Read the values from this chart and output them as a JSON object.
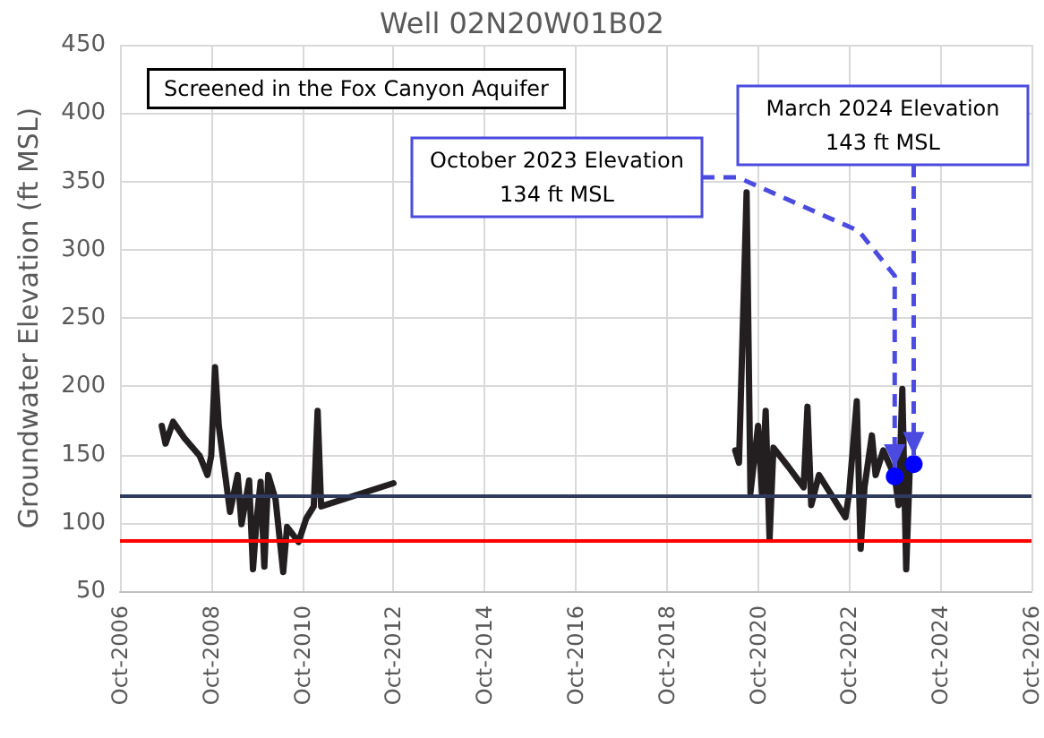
{
  "chart_data": {
    "type": "line",
    "title": "Well 02N20W01B02",
    "ylabel": "Groundwater Elevation (ft MSL)",
    "annotations": [
      "Screened in the Fox Canyon Aquifer",
      {
        "text": "October 2023 Elevation\n134 ft MSL",
        "x": "2023-10",
        "y": 134
      },
      {
        "text": "March 2024 Elevation\n143 ft MSL",
        "x": "2024-03",
        "y": 143
      }
    ],
    "series": [
      {
        "color": "#231f20",
        "x": [
          "2007-09",
          "2007-10",
          "2007-12",
          "2008-03",
          "2008-07",
          "2008-09",
          "2008-10",
          "2008-11",
          "2008-12",
          "2009-01",
          "2009-03",
          "2009-05",
          "2009-06",
          "2009-08",
          "2009-09",
          "2009-10",
          "2009-11",
          "2009-12",
          "2010-01",
          "2010-03",
          "2010-05",
          "2010-06",
          "2010-09",
          "2010-11",
          "2011-01",
          "2011-02",
          "2011-03",
          "2012-10"
        ],
        "values": [
          171,
          158,
          174,
          162,
          149,
          135,
          149,
          214,
          171,
          149,
          108,
          135,
          99,
          131,
          66,
          103,
          130,
          68,
          135,
          117,
          64,
          97,
          86,
          103,
          112,
          182,
          112,
          129
        ]
      },
      {
        "color": "#231f20",
        "x": [
          "2020-04",
          "2020-05",
          "2020-07",
          "2020-08",
          "2020-10",
          "2020-11",
          "2020-12",
          "2021-01",
          "2021-02",
          "2021-06",
          "2021-10",
          "2021-11",
          "2021-12",
          "2022-02",
          "2022-09",
          "2022-10",
          "2022-12",
          "2023-01",
          "2023-02",
          "2023-04",
          "2023-05",
          "2023-07",
          "2023-10",
          "2023-11",
          "2023-12",
          "2024-01",
          "2024-02",
          "2024-03"
        ],
        "values": [
          153,
          144,
          342,
          122,
          171,
          122,
          182,
          88,
          155,
          141,
          126,
          185,
          113,
          135,
          104,
          122,
          189,
          81,
          126,
          164,
          135,
          153,
          134,
          113,
          198,
          66,
          146,
          143
        ]
      },
      {
        "type": "scatter",
        "marker": "circle",
        "color": "#0000ff",
        "x": [
          "2023-10",
          "2024-03"
        ],
        "values": [
          134,
          143
        ]
      }
    ],
    "ref_lines": [
      {
        "axis": "y",
        "value": 120,
        "color": "#2e3b5e"
      },
      {
        "axis": "y",
        "value": 87,
        "color": "#ff0000"
      }
    ],
    "xlim": [
      "2006-10",
      "2026-10"
    ],
    "xticks": [
      {
        "value": "2006-10",
        "label": "Oct-2006"
      },
      {
        "value": "2008-10",
        "label": "Oct-2008"
      },
      {
        "value": "2010-10",
        "label": "Oct-2010"
      },
      {
        "value": "2012-10",
        "label": "Oct-2012"
      },
      {
        "value": "2014-10",
        "label": "Oct-2014"
      },
      {
        "value": "2016-10",
        "label": "Oct-2016"
      },
      {
        "value": "2018-10",
        "label": "Oct-2018"
      },
      {
        "value": "2020-10",
        "label": "Oct-2020"
      },
      {
        "value": "2022-10",
        "label": "Oct-2022"
      },
      {
        "value": "2024-10",
        "label": "Oct-2024"
      },
      {
        "value": "2026-10",
        "label": "Oct-2026"
      }
    ],
    "ylim": [
      50,
      450
    ],
    "yticks": [
      50,
      100,
      150,
      200,
      250,
      300,
      350,
      400,
      450
    ],
    "grid": true,
    "line_style": "solid"
  }
}
